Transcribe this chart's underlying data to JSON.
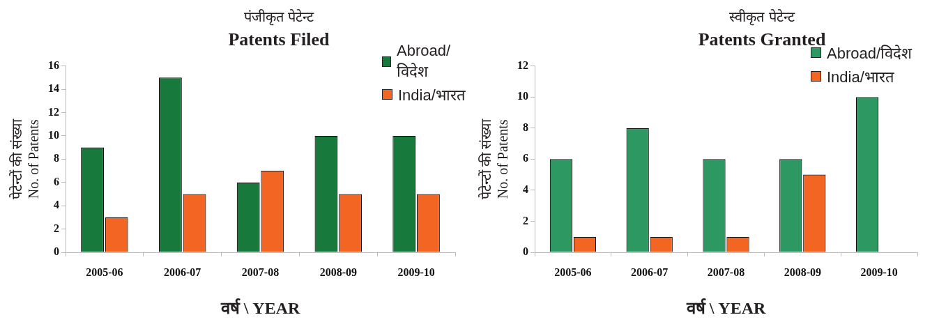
{
  "chart_data": [
    {
      "type": "bar",
      "subtitle": "पंजीकृत पेटेन्ट",
      "title": "Patents Filed",
      "ylabel": "पेटेन्टों की संख्या\nNo. of Patents",
      "xlabel": "वर्ष \\ YEAR",
      "categories": [
        "2005-06",
        "2006-07",
        "2007-08",
        "2008-09",
        "2009-10"
      ],
      "series": [
        {
          "name": "Abroad/विदेश",
          "color": "#177a3c",
          "values": [
            9,
            15,
            6,
            10,
            10
          ]
        },
        {
          "name": "India/भारत",
          "color": "#f26522",
          "values": [
            3,
            5,
            7,
            5,
            5
          ]
        }
      ],
      "ylim": [
        0,
        16
      ],
      "yticks": [
        0,
        2,
        4,
        6,
        8,
        10,
        12,
        14,
        16
      ],
      "grid": false,
      "legend": "top right"
    },
    {
      "type": "bar",
      "subtitle": "स्वीकृत पेटेन्ट",
      "title": "Patents Granted",
      "ylabel": "पेटेन्टों की संख्या\nNo. of Patents",
      "xlabel": "वर्ष \\ YEAR",
      "categories": [
        "2005-06",
        "2006-07",
        "2007-08",
        "2008-09",
        "2009-10"
      ],
      "series": [
        {
          "name": "Abroad/विदेश",
          "color": "#2e9862",
          "values": [
            6,
            8,
            6,
            6,
            10
          ]
        },
        {
          "name": "India/भारत",
          "color": "#f26522",
          "values": [
            1,
            1,
            1,
            5,
            0
          ]
        }
      ],
      "ylim": [
        0,
        12
      ],
      "yticks": [
        0,
        2,
        4,
        6,
        8,
        10,
        12
      ],
      "grid": false,
      "legend": "top right"
    }
  ]
}
